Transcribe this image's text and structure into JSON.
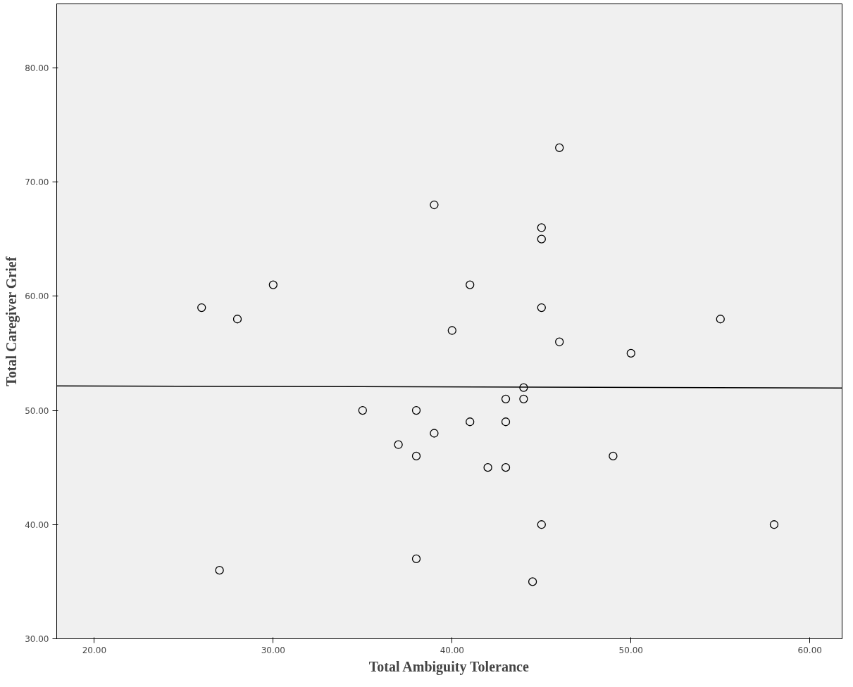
{
  "chart_data": {
    "type": "scatter",
    "xlabel": "Total Ambiguity Tolerance",
    "ylabel": "Total Caregiver Grief",
    "xlim": [
      17.9,
      61.8
    ],
    "ylim": [
      30,
      85.6
    ],
    "xticks": [
      {
        "value": 20,
        "label": "20.00"
      },
      {
        "value": 30,
        "label": "30.00"
      },
      {
        "value": 40,
        "label": "40.00"
      },
      {
        "value": 50,
        "label": "50.00"
      },
      {
        "value": 60,
        "label": "60.00"
      }
    ],
    "yticks": [
      {
        "value": 30,
        "label": "30.00"
      },
      {
        "value": 40,
        "label": "40.00"
      },
      {
        "value": 50,
        "label": "50.00"
      },
      {
        "value": 60,
        "label": "60.00"
      },
      {
        "value": 70,
        "label": "70.00"
      },
      {
        "value": 80,
        "label": "80.00"
      }
    ],
    "grid": false,
    "series": [
      {
        "marker": "circle",
        "color": "#000000",
        "x": [
          26,
          27,
          28,
          30,
          35,
          37,
          38,
          38,
          38,
          39,
          39,
          40,
          41,
          41,
          42,
          43,
          43,
          43,
          44,
          44,
          44.5,
          45,
          45,
          45,
          45,
          46,
          46,
          49,
          50,
          55,
          58
        ],
        "values": [
          59,
          36,
          58,
          61,
          50,
          47,
          50,
          46,
          37,
          68,
          48,
          57,
          61,
          49,
          45,
          51,
          49,
          45,
          52,
          51,
          35,
          66,
          65,
          59,
          40,
          73,
          56,
          46,
          55,
          58,
          40
        ]
      },
      {
        "type": "line",
        "marker": "none",
        "color": "#000000",
        "x": [
          17.9,
          61.8
        ],
        "values": [
          52.15,
          51.96
        ]
      }
    ]
  }
}
